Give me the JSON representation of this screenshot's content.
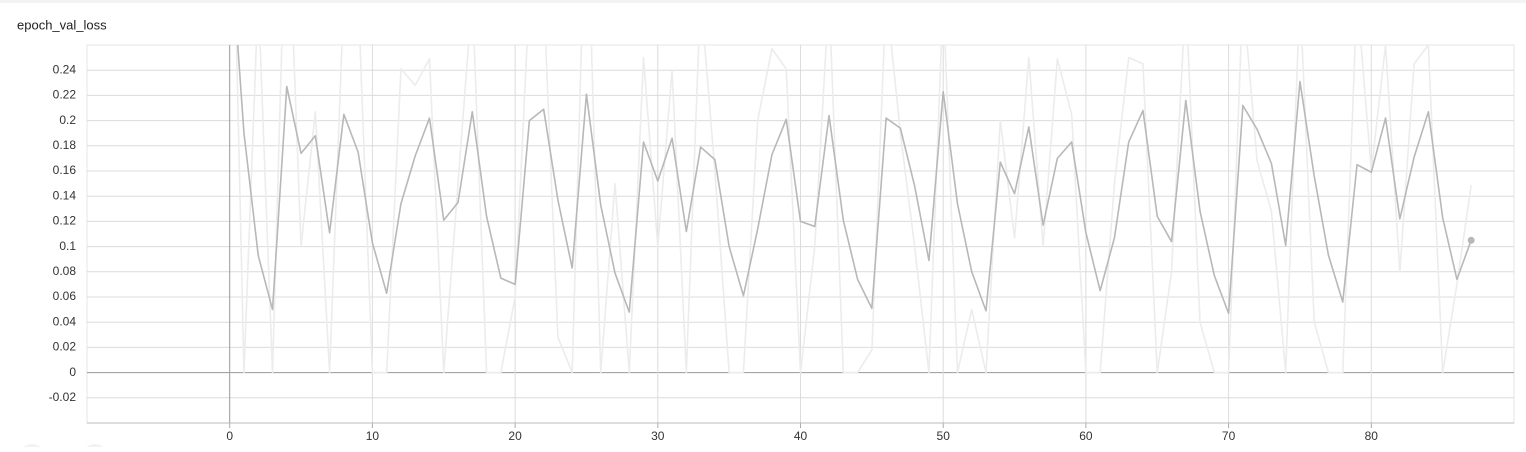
{
  "chart_data": {
    "type": "line",
    "title": "epoch_val_loss",
    "x": [
      0,
      1,
      2,
      3,
      4,
      5,
      6,
      7,
      8,
      9,
      10,
      11,
      12,
      13,
      14,
      15,
      16,
      17,
      18,
      19,
      20,
      21,
      22,
      23,
      24,
      25,
      26,
      27,
      28,
      29,
      30,
      31,
      32,
      33,
      34,
      35,
      36,
      37,
      38,
      39,
      40,
      41,
      42,
      43,
      44,
      45,
      46,
      47,
      48,
      49,
      50,
      51,
      52,
      53,
      54,
      55,
      56,
      57,
      58,
      59,
      60,
      61,
      62,
      63,
      64,
      65,
      66,
      67,
      68,
      69,
      70,
      71,
      72,
      73,
      74,
      75,
      76,
      77,
      78,
      79,
      80,
      81,
      82,
      83,
      84,
      85,
      86,
      87
    ],
    "series": [
      {
        "color": "#ececec",
        "values": [
          0.5,
          0,
          0.3,
          0,
          0.4,
          0.1,
          0.207,
          0,
          0.3,
          0.3,
          0,
          0,
          0.241,
          0.228,
          0.249,
          0,
          0.15,
          0.3,
          0,
          0,
          0.06,
          0.3,
          0.3,
          0.028,
          0,
          0.4,
          0,
          0.15,
          0,
          0.25,
          0.1,
          0.24,
          0,
          0.3,
          0.16,
          0,
          0,
          0.2,
          0.257,
          0.241,
          0,
          0.1,
          0.3,
          0,
          0,
          0.018,
          0.3,
          0.19,
          0.1,
          0,
          0.3,
          0,
          0.05,
          0,
          0.2,
          0.107,
          0.25,
          0.1,
          0.249,
          0.205,
          0,
          0,
          0.15,
          0.25,
          0.245,
          0,
          0.08,
          0.3,
          0.04,
          0,
          0,
          0.3,
          0.168,
          0.128,
          0,
          0.3,
          0.04,
          0,
          0,
          0.3,
          0.16,
          0.26,
          0.08,
          0.245,
          0.26,
          0,
          0.07,
          0.149
        ]
      },
      {
        "color": "#b8b8b8",
        "values": [
          0.35,
          0.19,
          0.093,
          0.05,
          0.227,
          0.174,
          0.188,
          0.111,
          0.205,
          0.175,
          0.103,
          0.063,
          0.134,
          0.172,
          0.202,
          0.121,
          0.135,
          0.207,
          0.124,
          0.075,
          0.07,
          0.2,
          0.209,
          0.137,
          0.083,
          0.221,
          0.133,
          0.079,
          0.048,
          0.183,
          0.152,
          0.186,
          0.112,
          0.179,
          0.169,
          0.1,
          0.061,
          0.114,
          0.173,
          0.201,
          0.12,
          0.116,
          0.204,
          0.121,
          0.074,
          0.051,
          0.202,
          0.194,
          0.148,
          0.089,
          0.223,
          0.134,
          0.08,
          0.049,
          0.167,
          0.142,
          0.195,
          0.117,
          0.17,
          0.183,
          0.111,
          0.065,
          0.107,
          0.183,
          0.208,
          0.124,
          0.104,
          0.216,
          0.128,
          0.077,
          0.047,
          0.212,
          0.193,
          0.166,
          0.101,
          0.231,
          0.156,
          0.093,
          0.056,
          0.165,
          0.159,
          0.202,
          0.122,
          0.171,
          0.207,
          0.123,
          0.074,
          0.105
        ]
      }
    ],
    "xlim": [
      -10,
      90
    ],
    "xticks": [
      0,
      10,
      20,
      30,
      40,
      50,
      60,
      70,
      80
    ],
    "ylim": [
      -0.04,
      0.26
    ],
    "yticks": [
      -0.02,
      0,
      0.02,
      0.04,
      0.06,
      0.08,
      0.1,
      0.12,
      0.14,
      0.16,
      0.18,
      0.2,
      0.22,
      0.24
    ],
    "grid": true
  }
}
